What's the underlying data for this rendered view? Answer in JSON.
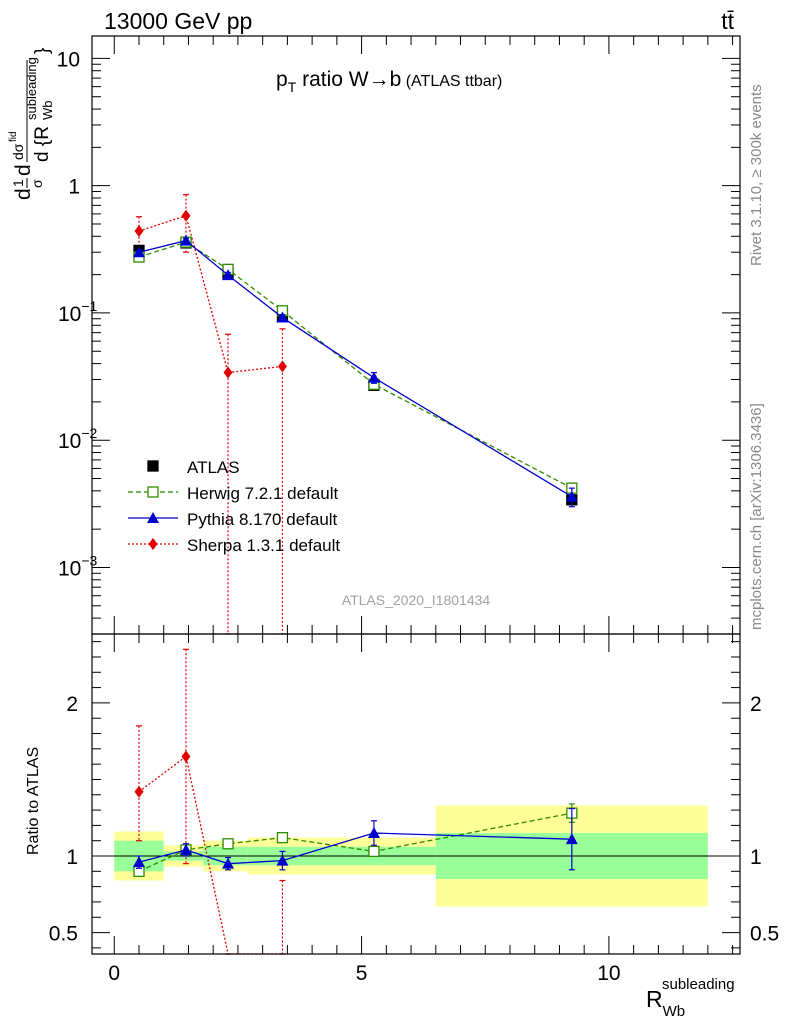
{
  "header": {
    "left": "13000 GeV pp",
    "right": "tt̄"
  },
  "plot_title": {
    "main": "p",
    "sub": "T",
    "rest": " ratio W→b",
    "small": " (ATLAS ttbar)"
  },
  "side_labels": {
    "rivet": "Rivet 3.1.10, ≥ 300k events",
    "mcplots": "mcplots.cern.ch [arXiv:1306.3436]"
  },
  "watermark": "ATLAS_2020_I1801434",
  "ylabel_main": "dσ/dR (normalized)",
  "ylabel_ratio": "Ratio to ATLAS",
  "xlabel": {
    "main": "R",
    "sub": "Wb",
    "sup": "subleading"
  },
  "colors": {
    "atlas": "#000000",
    "herwig": "#2e8b00",
    "pythia": "#0000cc",
    "sherpa": "#e00000",
    "band_inner": "#99ff99",
    "band_outer": "#ffff99"
  },
  "chart_data": {
    "type": "scatter",
    "x_range": [
      -0.45,
      12.65
    ],
    "y_range_main": [
      0.0003,
      15
    ],
    "y_scale_main": "log",
    "y_range_ratio": [
      0.36,
      2.45
    ],
    "main_yticks": [
      {
        "value": 10,
        "base": "10",
        "exp": ""
      },
      {
        "value": 1,
        "base": "1",
        "exp": ""
      },
      {
        "value": 0.1,
        "base": "10",
        "exp": "−1"
      },
      {
        "value": 0.01,
        "base": "10",
        "exp": "−2"
      },
      {
        "value": 0.001,
        "base": "10",
        "exp": "−3"
      }
    ],
    "xticks": [
      0,
      5,
      10
    ],
    "ratio_yticks": [
      0.5,
      1,
      2
    ],
    "legend": [
      "ATLAS",
      "Herwig 7.2.1 default",
      "Pythia 8.170 default",
      "Sherpa 1.3.1 default"
    ],
    "bin_edges": [
      0,
      1,
      1.8,
      2.7,
      4,
      6.5,
      12
    ],
    "atlas": {
      "x": [
        0.5,
        1.45,
        2.3,
        3.4,
        5.25,
        9.25
      ],
      "y": [
        0.31,
        0.355,
        0.205,
        0.094,
        0.027,
        0.0034
      ],
      "err_inner": [
        0.1,
        0.03,
        0.06,
        0.06,
        0.06,
        0.15
      ],
      "err_outer": [
        0.16,
        0.07,
        0.1,
        0.12,
        0.12,
        0.33
      ]
    },
    "herwig": {
      "x": [
        0.5,
        1.45,
        2.3,
        3.4,
        5.25,
        9.25
      ],
      "y": [
        0.275,
        0.36,
        0.22,
        0.104,
        0.0275,
        0.0042
      ],
      "yerr": [
        0,
        0,
        0,
        0,
        0,
        0.0003
      ],
      "ratio": [
        0.9,
        1.04,
        1.08,
        1.12,
        1.03,
        1.28
      ],
      "ratio_err": [
        0,
        0,
        0,
        0,
        0,
        0.06
      ]
    },
    "pythia": {
      "x": [
        0.5,
        1.45,
        2.3,
        3.4,
        5.25,
        9.25
      ],
      "y": [
        0.3,
        0.37,
        0.198,
        0.092,
        0.031,
        0.0036
      ],
      "yerr": [
        0.01,
        0.015,
        0.01,
        0.005,
        0.003,
        0.0006
      ],
      "ratio": [
        0.96,
        1.04,
        0.95,
        0.97,
        1.15,
        1.11
      ],
      "ratio_err": [
        0.04,
        0.04,
        0.04,
        0.06,
        0.08,
        0.2
      ]
    },
    "sherpa": {
      "x": [
        0.5,
        1.45,
        2.3,
        3.4
      ],
      "y": [
        0.44,
        0.58,
        0.034,
        0.038
      ],
      "y_hi": [
        0.57,
        0.85,
        0.068,
        0.075
      ],
      "y_lo": [
        0.3,
        0.3,
        0.0001,
        0.0001
      ],
      "ratio": [
        1.42,
        1.65,
        0.3,
        0.33
      ],
      "ratio_hi": [
        1.85,
        2.35,
        0.3,
        0.84
      ],
      "ratio_lo": [
        1.1,
        0.95,
        0.3,
        0.3
      ]
    }
  }
}
